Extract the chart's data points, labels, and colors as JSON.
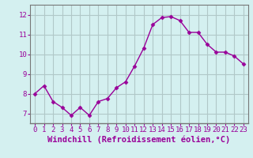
{
  "x": [
    0,
    1,
    2,
    3,
    4,
    5,
    6,
    7,
    8,
    9,
    10,
    11,
    12,
    13,
    14,
    15,
    16,
    17,
    18,
    19,
    20,
    21,
    22,
    23
  ],
  "y": [
    8.0,
    8.4,
    7.6,
    7.3,
    6.9,
    7.3,
    6.9,
    7.6,
    7.75,
    8.3,
    8.6,
    9.4,
    10.3,
    11.5,
    11.85,
    11.9,
    11.7,
    11.1,
    11.1,
    10.5,
    10.1,
    10.1,
    9.9,
    9.5
  ],
  "line_color": "#990099",
  "marker": "D",
  "marker_size": 2.5,
  "bg_color": "#d4f0f0",
  "grid_color": "#b0c8c8",
  "xlabel": "Windchill (Refroidissement éolien,°C)",
  "xlabel_color": "#990099",
  "tick_color": "#990099",
  "spine_color": "#777777",
  "ylim": [
    6.5,
    12.5
  ],
  "xlim": [
    -0.5,
    23.5
  ],
  "yticks": [
    7,
    8,
    9,
    10,
    11,
    12
  ],
  "xtick_labels": [
    "0",
    "1",
    "2",
    "3",
    "4",
    "5",
    "6",
    "7",
    "8",
    "9",
    "10",
    "11",
    "12",
    "13",
    "14",
    "15",
    "16",
    "17",
    "18",
    "19",
    "20",
    "21",
    "22",
    "23"
  ],
  "font_size": 6.5,
  "xlabel_font_size": 7.5
}
